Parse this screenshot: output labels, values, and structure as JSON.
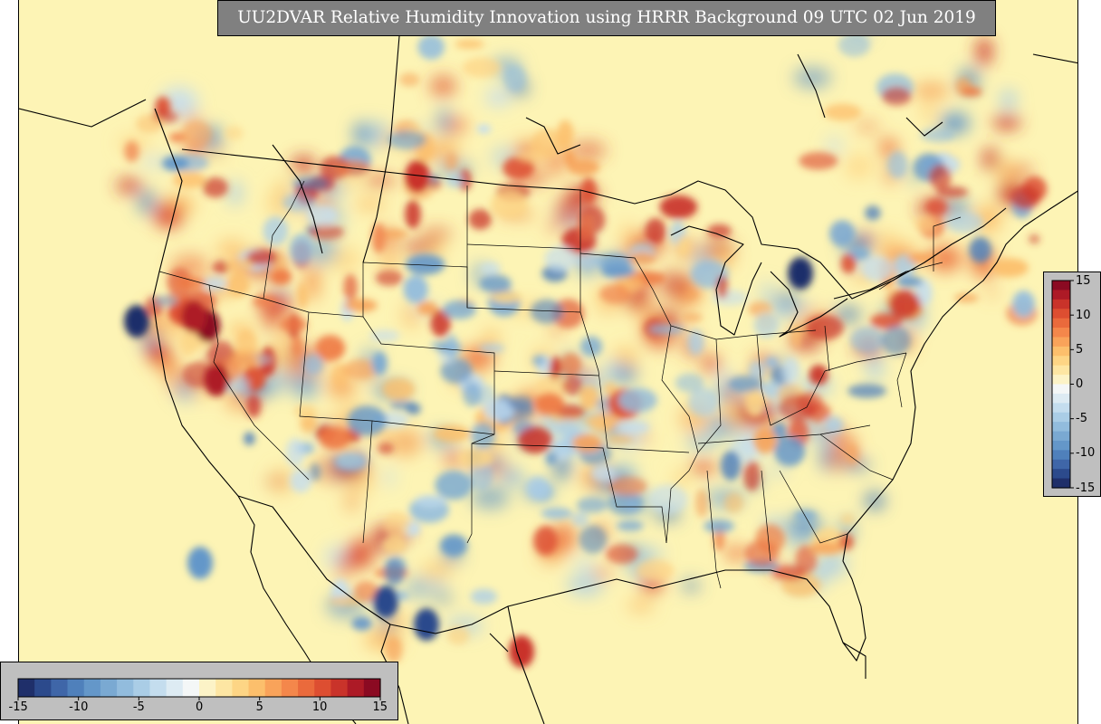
{
  "title": "UU2DVAR Relative Humidity Innovation using HRRR Background 09 UTC 02 Jun 2019",
  "colorbar": {
    "min": -15,
    "max": 15,
    "colors": [
      "#1f2f6a",
      "#2c4a8c",
      "#3f66a8",
      "#4f80bb",
      "#6497c9",
      "#7aa9d2",
      "#92bcdd",
      "#aacde6",
      "#c4ddee",
      "#ddebf3",
      "#f4f7f7",
      "#fcf3c7",
      "#fde6a3",
      "#fdd585",
      "#fcbf6c",
      "#f9a35a",
      "#f4874b",
      "#ea6a3c",
      "#dd4e31",
      "#c9332a",
      "#ad1a26",
      "#8b0a22"
    ],
    "ticks_horizontal": [
      "-15",
      "-10",
      "-5",
      "0",
      "5",
      "10",
      "15"
    ],
    "ticks_vertical": [
      "15",
      "10",
      "5",
      "0",
      "-5",
      "-10",
      "-15"
    ]
  }
}
